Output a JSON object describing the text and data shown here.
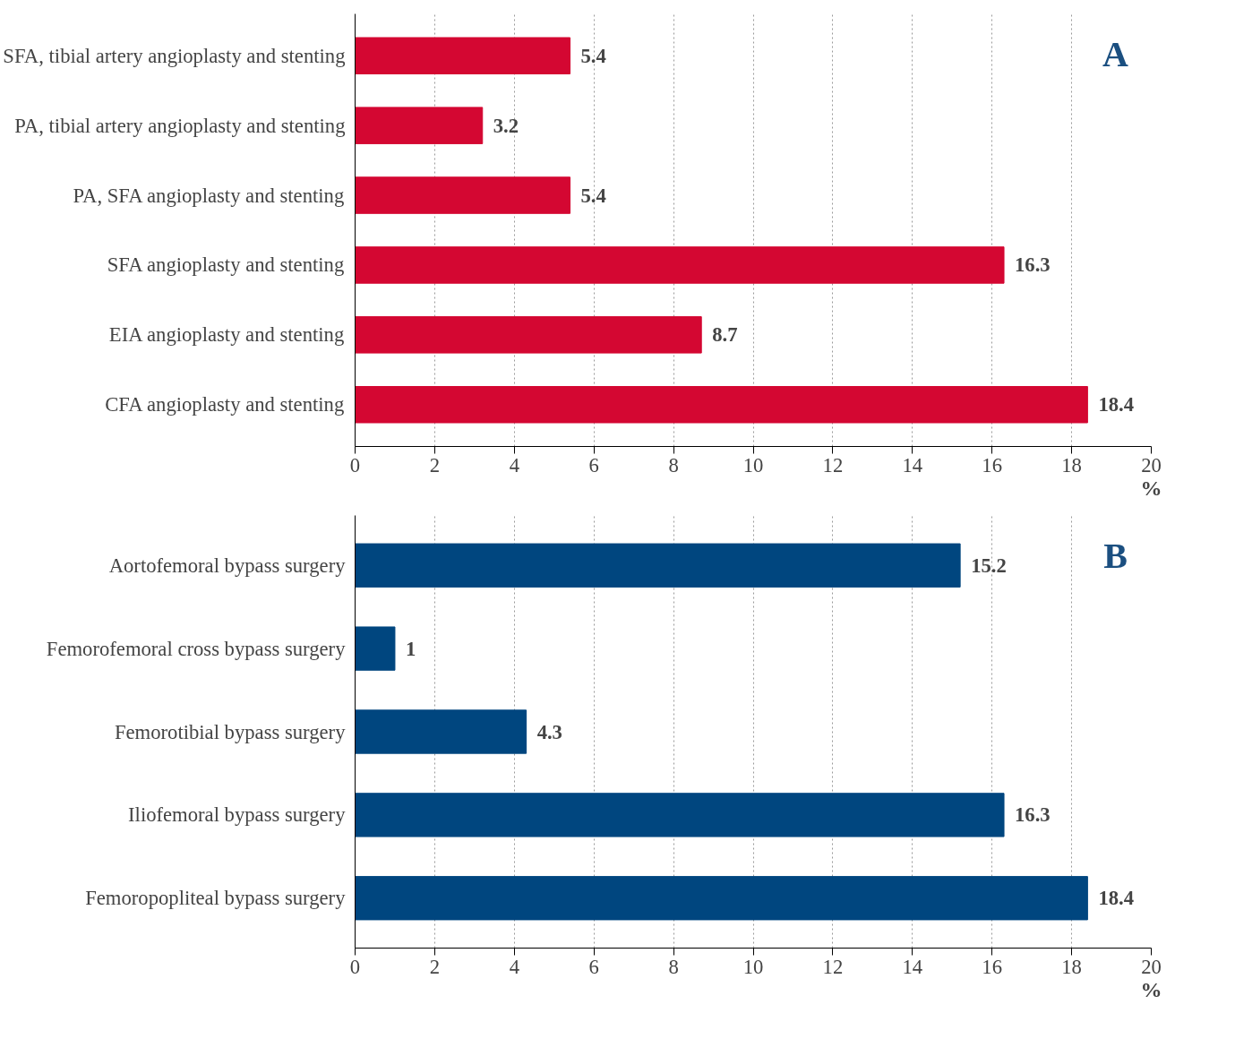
{
  "chart_data": [
    {
      "type": "bar",
      "orientation": "horizontal",
      "categories": [
        "SFA, tibial artery angioplasty and stenting",
        "PA, tibial artery angioplasty and stenting",
        "PA, SFA angioplasty and stenting",
        "SFA angioplasty and stenting",
        "EIA angioplasty and stenting",
        "CFA angioplasty and stenting"
      ],
      "values": [
        5.4,
        3.2,
        5.4,
        16.3,
        8.7,
        18.4
      ],
      "color": "#d40732",
      "xlim": [
        0,
        20
      ],
      "xticks": [
        0,
        2,
        4,
        6,
        8,
        10,
        12,
        14,
        16,
        18,
        20
      ],
      "xlabel": "%",
      "grid": "x",
      "data_labels": true,
      "annotations": [
        "A"
      ]
    },
    {
      "type": "bar",
      "orientation": "horizontal",
      "categories": [
        "Aortofemoral bypass surgery",
        "Femorofemoral cross bypass surgery",
        "Femorotibial bypass surgery",
        "Iliofemoral bypass surgery",
        "Femoropopliteal bypass surgery"
      ],
      "values": [
        15.2,
        1,
        4.3,
        16.3,
        18.4
      ],
      "color": "#00467f",
      "xlim": [
        0,
        20
      ],
      "xticks": [
        0,
        2,
        4,
        6,
        8,
        10,
        12,
        14,
        16,
        18,
        20
      ],
      "xlabel": "%",
      "grid": "x",
      "data_labels": true,
      "annotations": [
        "B"
      ]
    }
  ]
}
